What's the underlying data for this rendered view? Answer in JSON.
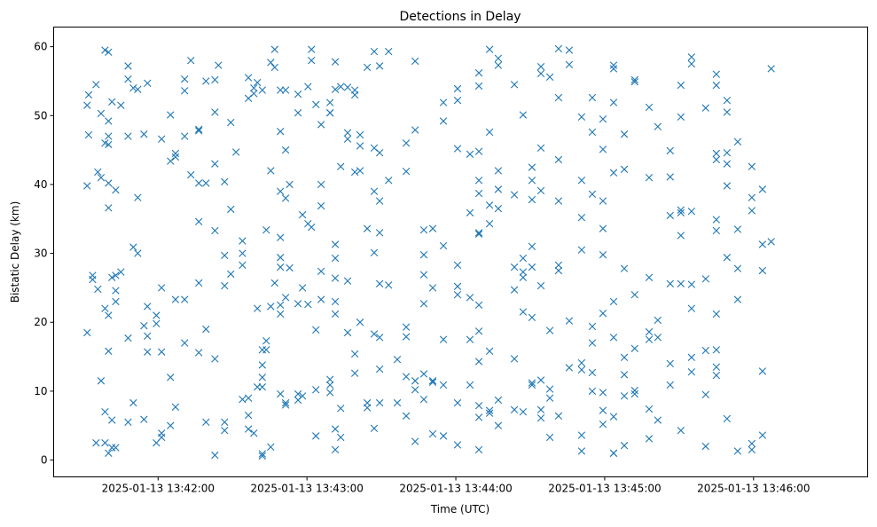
{
  "chart_data": {
    "type": "scatter",
    "title": "Detections in Delay",
    "xlabel": "Time (UTC)",
    "ylabel": "Bistatic Delay (km)",
    "x_unit": "seconds after 2025-01-13 13:41:00 UTC",
    "xlim": [
      17.9,
      346
    ],
    "ylim": [
      -2.44,
      62.85
    ],
    "marker": "x",
    "color": "#1f77b4",
    "grid": false,
    "xticks": [
      {
        "value": 60,
        "label": "2025-01-13 13:42:00"
      },
      {
        "value": 120,
        "label": "2025-01-13 13:43:00"
      },
      {
        "value": 180,
        "label": "2025-01-13 13:44:00"
      },
      {
        "value": 240,
        "label": "2025-01-13 13:45:00"
      },
      {
        "value": 300,
        "label": "2025-01-13 13:46:00"
      }
    ],
    "yticks": [
      {
        "value": 0,
        "label": "0"
      },
      {
        "value": 10,
        "label": "10"
      },
      {
        "value": 20,
        "label": "20"
      },
      {
        "value": 30,
        "label": "30"
      },
      {
        "value": 40,
        "label": "40"
      },
      {
        "value": 50,
        "label": "50"
      },
      {
        "value": 60,
        "label": "60"
      }
    ],
    "points_by_time": [
      {
        "x": 31.4,
        "y": [
          51.5,
          39.8,
          18.5
        ]
      },
      {
        "x": 32,
        "y": [
          53,
          47.2
        ]
      },
      {
        "x": 33.6,
        "y": [
          26.8,
          26.2
        ]
      },
      {
        "x": 35,
        "y": [
          54.5,
          2.5
        ]
      },
      {
        "x": 35.7,
        "y": [
          41.8,
          24.8
        ]
      },
      {
        "x": 37,
        "y": [
          50.3,
          41,
          11.5
        ]
      },
      {
        "x": 38.6,
        "y": [
          59.5,
          46,
          22,
          7,
          2.5
        ]
      },
      {
        "x": 40,
        "y": [
          59.2,
          49.2,
          47,
          45.8,
          40.2,
          36.6,
          21,
          15.8,
          1
        ]
      },
      {
        "x": 41.4,
        "y": [
          52,
          26.5,
          5.8,
          1.8
        ]
      },
      {
        "x": 42.9,
        "y": [
          39.2,
          26.8,
          24.6,
          23,
          1.8
        ]
      },
      {
        "x": 45,
        "y": [
          51.5,
          27.3
        ]
      },
      {
        "x": 47.9,
        "y": [
          57.2,
          55.3,
          47,
          17.7,
          5.5
        ]
      },
      {
        "x": 50,
        "y": [
          54,
          30.9,
          8.3
        ]
      },
      {
        "x": 51.8,
        "y": [
          53.8,
          38.1,
          30
        ]
      },
      {
        "x": 54.3,
        "y": [
          47.3,
          19.5,
          5.9
        ]
      },
      {
        "x": 55.7,
        "y": [
          54.7,
          22.3,
          18,
          15.7
        ]
      },
      {
        "x": 59.3,
        "y": [
          21,
          19.8,
          2.5
        ]
      },
      {
        "x": 61.4,
        "y": [
          46.6,
          25,
          15.7,
          3.9,
          3.3
        ]
      },
      {
        "x": 65,
        "y": [
          50.1,
          43.4,
          12,
          5
        ]
      },
      {
        "x": 67,
        "y": [
          44.5,
          44,
          23.3,
          7.7
        ]
      },
      {
        "x": 70.7,
        "y": [
          55.3,
          53.6,
          47,
          23.3,
          17
        ]
      },
      {
        "x": 73.2,
        "y": [
          58,
          41.4
        ]
      },
      {
        "x": 76.4,
        "y": [
          48,
          47.8,
          40.2,
          34.6,
          25.7,
          15.6
        ]
      },
      {
        "x": 79.3,
        "y": [
          55,
          40.2,
          19,
          5.5
        ]
      },
      {
        "x": 82.9,
        "y": [
          55.2,
          50.5,
          43,
          33.3,
          14.7,
          0.7
        ]
      },
      {
        "x": 84.3,
        "y": [
          57.3
        ]
      },
      {
        "x": 86.8,
        "y": [
          40.4,
          29.7,
          25.3,
          5.5,
          4.3
        ]
      },
      {
        "x": 89.3,
        "y": [
          36.4,
          49,
          27
        ]
      },
      {
        "x": 91.4,
        "y": [
          44.7
        ]
      },
      {
        "x": 94,
        "y": [
          8.8,
          31.8,
          28.3,
          30
        ]
      },
      {
        "x": 96.4,
        "y": [
          55.5,
          52.5,
          9,
          6.5,
          4.5
        ]
      },
      {
        "x": 98.6,
        "y": [
          54,
          53.2,
          3.9
        ]
      },
      {
        "x": 100,
        "y": [
          54.8,
          22,
          10.6
        ]
      },
      {
        "x": 102,
        "y": [
          53.7,
          16,
          13.8,
          12,
          10.6,
          0.9,
          0.6
        ]
      },
      {
        "x": 103.6,
        "y": [
          33.4,
          17.3,
          16
        ]
      },
      {
        "x": 105.4,
        "y": [
          57.7,
          42,
          22.3,
          1.9
        ]
      },
      {
        "x": 107,
        "y": [
          59.6,
          57,
          25.7
        ]
      },
      {
        "x": 109.3,
        "y": [
          53.7,
          47.7,
          39,
          32.3,
          29.4,
          28,
          22.5,
          21.2,
          9.6
        ]
      },
      {
        "x": 111.4,
        "y": [
          53.7,
          45,
          38,
          23.6,
          8,
          8.3
        ]
      },
      {
        "x": 113,
        "y": [
          40,
          27.9
        ]
      },
      {
        "x": 116.4,
        "y": [
          53.1,
          50.4,
          22.7,
          9.6,
          8.7
        ]
      },
      {
        "x": 118.2,
        "y": [
          35.6,
          25,
          9.3
        ]
      },
      {
        "x": 120.4,
        "y": [
          54.2,
          34.3,
          22.6
        ]
      },
      {
        "x": 121.8,
        "y": [
          59.6,
          58,
          33.8
        ]
      },
      {
        "x": 123.6,
        "y": [
          51.6,
          18.9,
          10.2,
          3.5
        ]
      },
      {
        "x": 125.7,
        "y": [
          48.7,
          40,
          36.9,
          27.4,
          23.3
        ]
      },
      {
        "x": 129.3,
        "y": [
          51.9,
          50.4,
          50.4,
          11.7,
          10.9,
          9.8
        ]
      },
      {
        "x": 131.4,
        "y": [
          57.8,
          53.8,
          31.3,
          29.3,
          26.4,
          23,
          21.2,
          4.5,
          1.5
        ]
      },
      {
        "x": 133.6,
        "y": [
          54.2,
          42.6,
          7.5,
          3.3
        ]
      },
      {
        "x": 136.4,
        "y": [
          54.1,
          47.5,
          46.6,
          18.5,
          26
        ]
      },
      {
        "x": 139.3,
        "y": [
          53.7,
          53,
          41.8,
          15.4,
          12.6
        ]
      },
      {
        "x": 141.4,
        "y": [
          47.2,
          45.6,
          42,
          20
        ]
      },
      {
        "x": 144.3,
        "y": [
          57,
          33.6,
          8.3,
          7.6
        ]
      },
      {
        "x": 147.1,
        "y": [
          59.3,
          45.3,
          39,
          30.1,
          18.3,
          4.6
        ]
      },
      {
        "x": 149.3,
        "y": [
          57.2,
          44.6,
          37.6,
          33,
          25.6,
          17.8,
          13.2,
          8.3
        ]
      },
      {
        "x": 152.9,
        "y": [
          59.3,
          40.6,
          25.4
        ]
      },
      {
        "x": 156.4,
        "y": [
          14.6,
          8.3
        ]
      },
      {
        "x": 160,
        "y": [
          46,
          41.9,
          19.3,
          17.9,
          12.1,
          6.4
        ]
      },
      {
        "x": 163.6,
        "y": [
          57.9,
          47.9,
          11.5,
          10.2,
          2.7
        ]
      },
      {
        "x": 167.1,
        "y": [
          33.4,
          29.8,
          26.9,
          22.7,
          12.5,
          8.8
        ]
      },
      {
        "x": 170.7,
        "y": [
          33.6,
          25,
          11.3,
          11.5,
          3.8
        ]
      },
      {
        "x": 175,
        "y": [
          51.9,
          49.2,
          31.1,
          17.5,
          10.9,
          3.5
        ]
      },
      {
        "x": 180.7,
        "y": [
          53.9,
          52.2,
          45.2,
          28.3,
          24,
          25.2,
          8.3,
          2.2
        ]
      },
      {
        "x": 185.7,
        "y": [
          44.4,
          35.9,
          17.5,
          23.6,
          10.9
        ]
      },
      {
        "x": 189.3,
        "y": [
          56.2,
          54.3,
          44.8,
          40.6,
          38.7,
          33,
          32.8,
          22.5,
          18.7,
          14.3,
          7.9,
          6.2,
          1.5
        ]
      },
      {
        "x": 193.6,
        "y": [
          59.6,
          47.6,
          37,
          34.3,
          7.2,
          6.8,
          15.8
        ]
      },
      {
        "x": 197.1,
        "y": [
          58.3,
          57.3,
          42,
          36.5,
          39.3,
          8.7,
          5
        ]
      },
      {
        "x": 203.6,
        "y": [
          54.5,
          38.5,
          28,
          24.7,
          14.7,
          7.3
        ]
      },
      {
        "x": 207.1,
        "y": [
          50.1,
          29.3,
          27.3,
          26.5,
          21.5,
          7
        ]
      },
      {
        "x": 210.7,
        "y": [
          42.5,
          40.6,
          37.8,
          31,
          28,
          20.7,
          11.2,
          10.9
        ]
      },
      {
        "x": 214.3,
        "y": [
          57.1,
          56.1,
          45.3,
          39.1,
          25.3,
          11.6,
          7.3,
          6.1
        ]
      },
      {
        "x": 217.9,
        "y": [
          55.6,
          18.8,
          10.3,
          9,
          3.3
        ]
      },
      {
        "x": 221.4,
        "y": [
          59.7,
          52.6,
          43.6,
          37.6,
          28.3,
          27.5,
          6.4
        ]
      },
      {
        "x": 225.7,
        "y": [
          59.5,
          57.4,
          20.2,
          13.4
        ]
      },
      {
        "x": 230.7,
        "y": [
          49.8,
          40.6,
          35.2,
          30.5,
          14.1,
          13.1,
          3.6,
          1.3
        ]
      },
      {
        "x": 235,
        "y": [
          52.6,
          47.6,
          38.6,
          19.4,
          17,
          12.7,
          10
        ]
      },
      {
        "x": 239.3,
        "y": [
          49.5,
          45.1,
          37.6,
          33.6,
          29.8,
          21.3,
          9.8,
          7.2,
          5.2
        ]
      },
      {
        "x": 243.6,
        "y": [
          56.8,
          57.3,
          51.9,
          41.7,
          17.8,
          23,
          6.3,
          1,
          1
        ]
      },
      {
        "x": 247.9,
        "y": [
          47.3,
          42.2,
          27.8,
          14.9,
          12.4,
          9.3,
          2.1
        ]
      },
      {
        "x": 252.1,
        "y": [
          55.2,
          54.9,
          24,
          16.2,
          10.1,
          9.6
        ]
      },
      {
        "x": 257.9,
        "y": [
          51.2,
          41,
          26.5,
          18.6,
          17.5,
          7.4,
          3.1
        ]
      },
      {
        "x": 261.4,
        "y": [
          48.4,
          20.3,
          17.8,
          5.8
        ]
      },
      {
        "x": 266.4,
        "y": [
          44.9,
          41.1,
          35.5,
          25.6,
          10.9,
          14
        ]
      },
      {
        "x": 270.7,
        "y": [
          54.4,
          49.8,
          36.3,
          35.9,
          32.6,
          25.6,
          4.3
        ]
      },
      {
        "x": 275,
        "y": [
          57.5,
          58.5,
          36.1,
          25.5,
          22,
          14.9,
          12.8
        ]
      },
      {
        "x": 280.7,
        "y": [
          51.1,
          26.3,
          15.9,
          9.5,
          2
        ]
      },
      {
        "x": 285,
        "y": [
          56,
          54.4,
          44.5,
          43.6,
          34.9,
          33.3,
          21.2,
          16,
          13.5,
          12.3
        ]
      },
      {
        "x": 289.3,
        "y": [
          52.2,
          50.5,
          43,
          39.8,
          44.6,
          29.4,
          6
        ]
      },
      {
        "x": 293.6,
        "y": [
          46.2,
          33.5,
          27.8,
          23.3,
          1.3
        ]
      },
      {
        "x": 299.3,
        "y": [
          42.6,
          38.1,
          36.2,
          2.4,
          1.5
        ]
      },
      {
        "x": 303.6,
        "y": [
          39.3,
          31.3,
          27.5,
          12.9,
          3.6
        ]
      },
      {
        "x": 307.1,
        "y": [
          56.8,
          31.7
        ]
      }
    ]
  }
}
